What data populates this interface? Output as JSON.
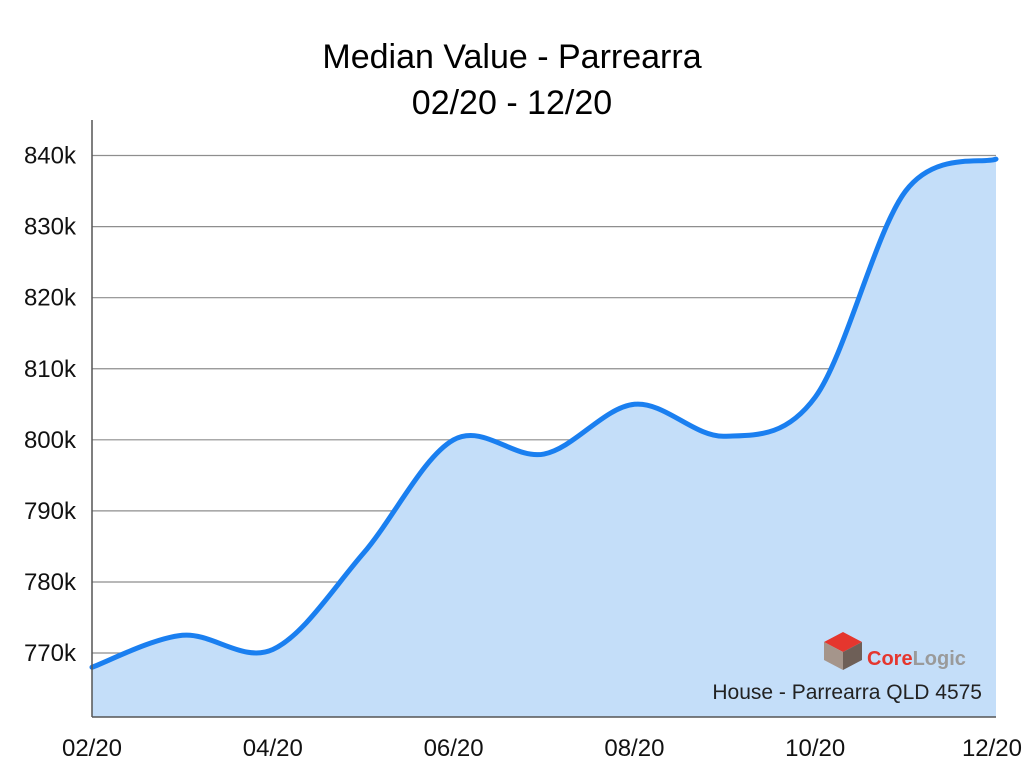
{
  "chart_data": {
    "type": "area",
    "title": "Median Value - Parrearra",
    "subtitle": "02/20 - 12/20",
    "x": [
      "02/20",
      "03/20",
      "04/20",
      "05/20",
      "06/20",
      "07/20",
      "08/20",
      "09/20",
      "10/20",
      "11/20",
      "12/20"
    ],
    "series": [
      {
        "values": [
          768000,
          772500,
          770500,
          784000,
          800000,
          798000,
          805000,
          800500,
          806000,
          835000,
          839500
        ]
      }
    ],
    "x_tick_labels": [
      "02/20",
      "04/20",
      "06/20",
      "08/20",
      "10/20",
      "12/20"
    ],
    "y_ticks": [
      770000,
      780000,
      790000,
      800000,
      810000,
      820000,
      830000,
      840000
    ],
    "y_tick_labels": [
      "770k",
      "780k",
      "790k",
      "800k",
      "810k",
      "820k",
      "830k",
      "840k"
    ],
    "ylim": [
      761000,
      845000
    ],
    "grid": true,
    "line_color": "#1a7ff0",
    "fill_color": "#c4def9",
    "annotation": "House - Parrearra QLD 4575",
    "logo": {
      "text_a": "Core",
      "text_b": "Logic",
      "color_a": "#e5362e",
      "color_b": "#9a9a9a"
    }
  }
}
